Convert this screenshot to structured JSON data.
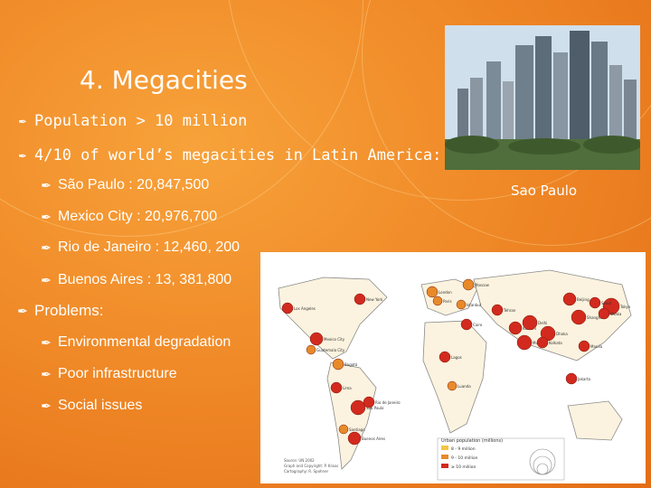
{
  "slide": {
    "title": "4. Megacities",
    "bullets": [
      "Population > 10 million",
      "4/10 of world’s megacities in Latin America:"
    ],
    "cities": [
      "São Paulo : 20,847,500",
      "Mexico City : 20,976,700",
      "Rio de Janeiro : 12,460, 200",
      "Buenos Aires : 13, 381,800"
    ],
    "problems_heading": "Problems:",
    "problems": [
      "Environmental degradation",
      "Poor infrastructure",
      "Social issues"
    ],
    "photo_caption": "Sao Paulo",
    "bullet_icon": "feather-pen-icon"
  },
  "map": {
    "legend_title": "Urban population (millions)",
    "legend_items": [
      "8 - 9 million",
      "9 - 10 million",
      "≥ 10 million"
    ],
    "legend_colors": [
      "#f5c542",
      "#e88a2a",
      "#d22a1e"
    ],
    "credits": [
      "Source: UN 2002",
      "Graph and Copyright: P. Kraas",
      "Cartography: R. Spohner"
    ],
    "city_labels": [
      "Los Angeles",
      "New York",
      "Mexico City",
      "Guatemala City",
      "Bogotá",
      "Lima",
      "São Paulo",
      "Rio de Janeiro",
      "Buenos Aires",
      "Santiago",
      "Lagos",
      "Luanda",
      "Cairo",
      "Tehran",
      "Karachi",
      "Mumbai",
      "Delhi",
      "Dhaka",
      "Kolkata",
      "Beijing",
      "Shanghai",
      "Tokyo",
      "Osaka",
      "Manila",
      "Jakarta",
      "Moscow",
      "London",
      "Paris",
      "Istanbul",
      "Seoul"
    ]
  }
}
